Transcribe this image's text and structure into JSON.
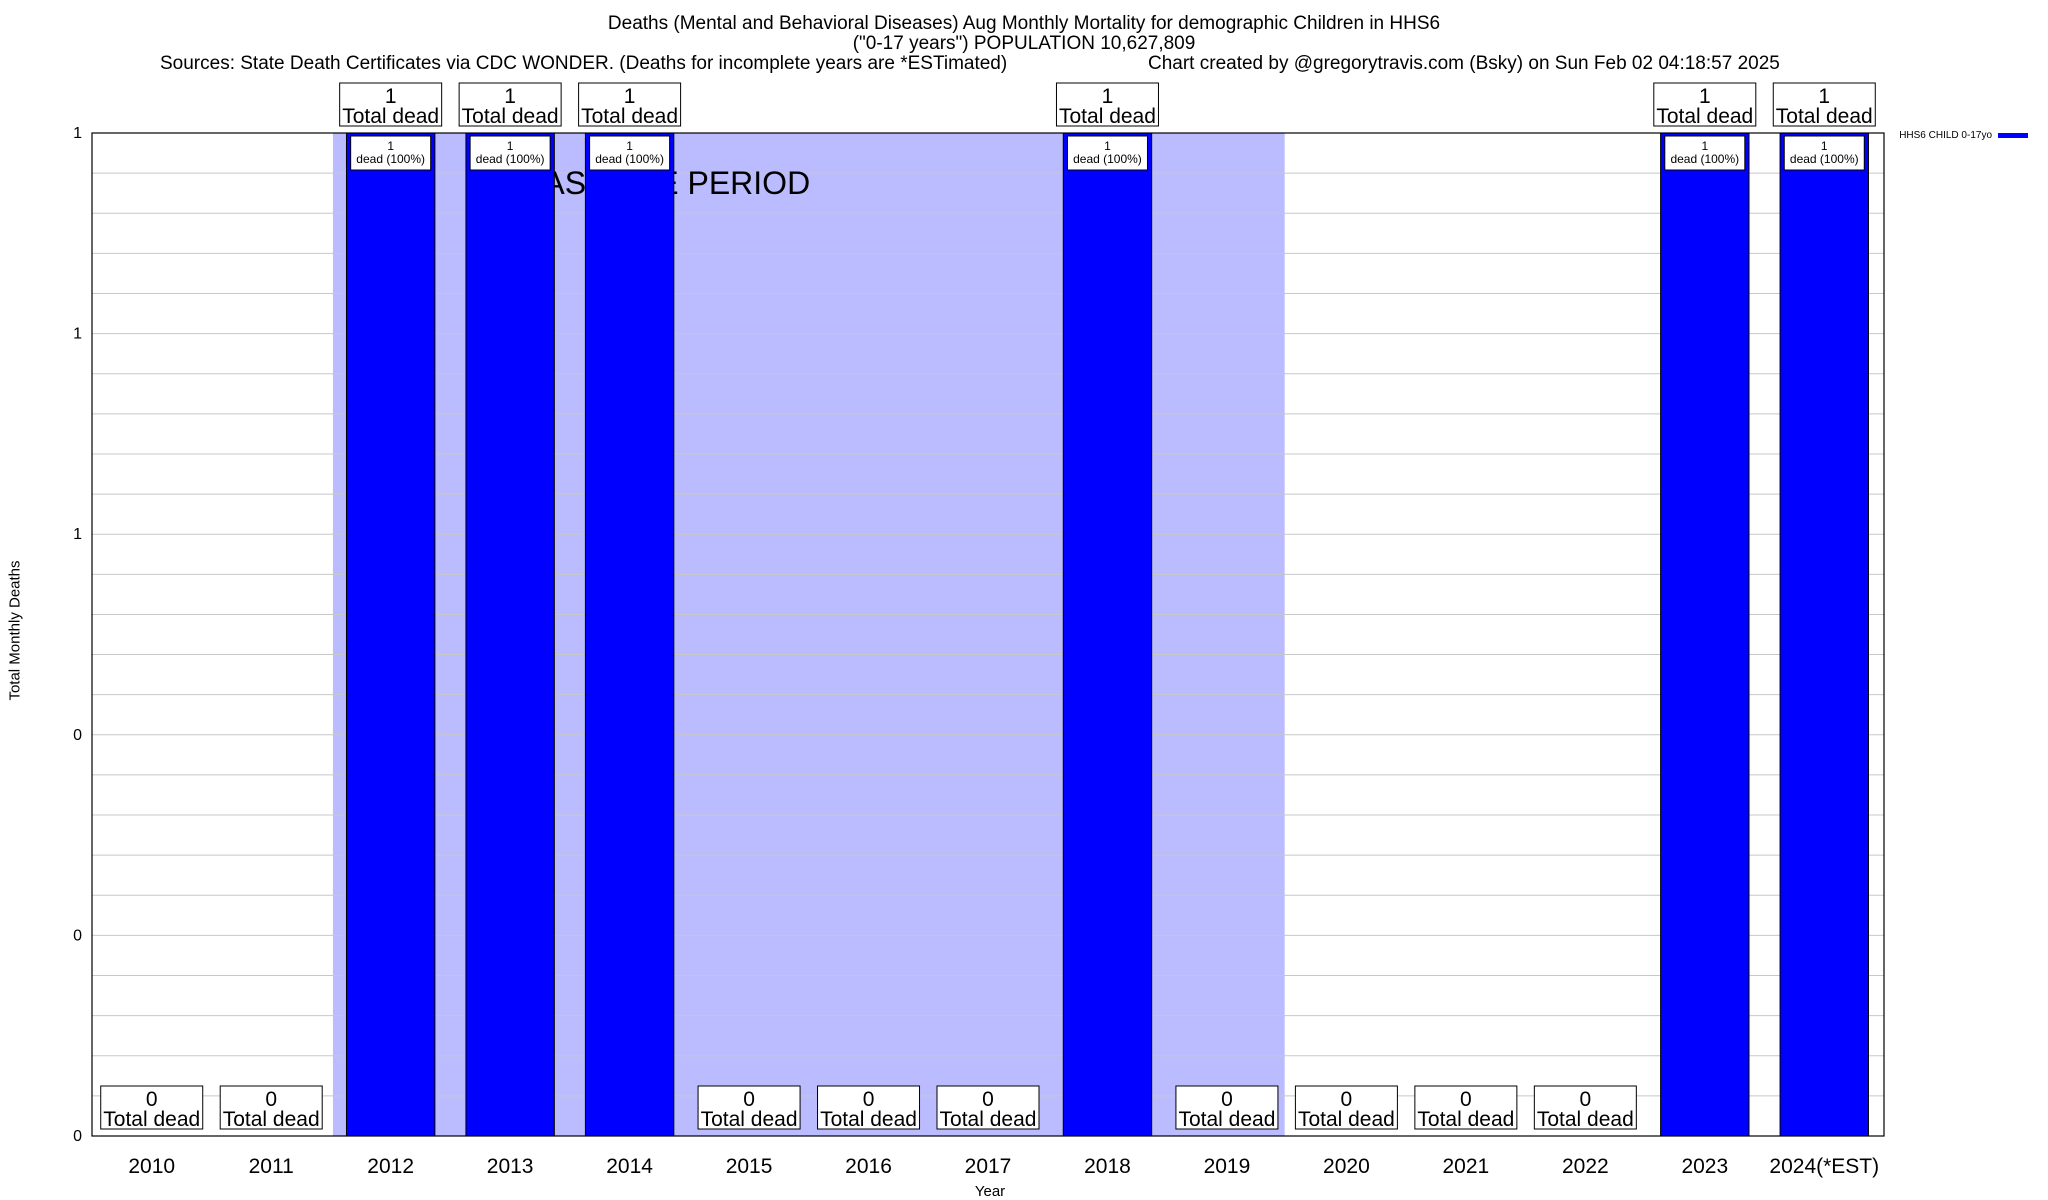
{
  "title": {
    "line1": "Deaths (Mental and Behavioral Diseases) Aug Monthly Mortality for demographic Children in HHS6",
    "line2": "(\"0-17 years\") POPULATION 10,627,809",
    "sources": "Sources: State Death Certificates via CDC WONDER. (Deaths for incomplete years are *ESTimated)",
    "credit": "Chart created by @gregorytravis.com (Bsky) on Sun Feb 02 04:18:57 2025"
  },
  "chart_data": {
    "type": "bar",
    "xlabel": "Year",
    "ylabel": "Total Monthly Deaths",
    "ylim": [
      0,
      1
    ],
    "y_tick_labels": [
      "0",
      "0",
      "0",
      "1",
      "1",
      "1"
    ],
    "categories": [
      "2010",
      "2011",
      "2012",
      "2013",
      "2014",
      "2015",
      "2016",
      "2017",
      "2018",
      "2019",
      "2020",
      "2021",
      "2022",
      "2023",
      "2024(*EST)"
    ],
    "series": [
      {
        "name": "HHS6 CHILD 0-17yo",
        "color": "#0000ff",
        "values": [
          0,
          0,
          1,
          1,
          1,
          0,
          0,
          0,
          1,
          0,
          0,
          0,
          0,
          1,
          1
        ]
      }
    ],
    "total_labels": [
      "0\nTotal dead",
      "0\nTotal dead",
      "1\nTotal dead",
      "1\nTotal dead",
      "1\nTotal dead",
      "0\nTotal dead",
      "0\nTotal dead",
      "0\nTotal dead",
      "1\nTotal dead",
      "0\nTotal dead",
      "0\nTotal dead",
      "0\nTotal dead",
      "0\nTotal dead",
      "1\nTotal dead",
      "1\nTotal dead"
    ],
    "inner_labels": [
      "",
      "",
      "1\ndead (100%)",
      "1\ndead (100%)",
      "1\ndead (100%)",
      "",
      "",
      "",
      "1\ndead (100%)",
      "",
      "",
      "",
      "",
      "1\ndead (100%)",
      "1\ndead (100%)"
    ],
    "baseline": {
      "label": "BASELINE PERIOD",
      "from": "2012",
      "to": "2019",
      "color": "#bbbbff"
    },
    "grid": true,
    "legend_position": "top-right"
  }
}
